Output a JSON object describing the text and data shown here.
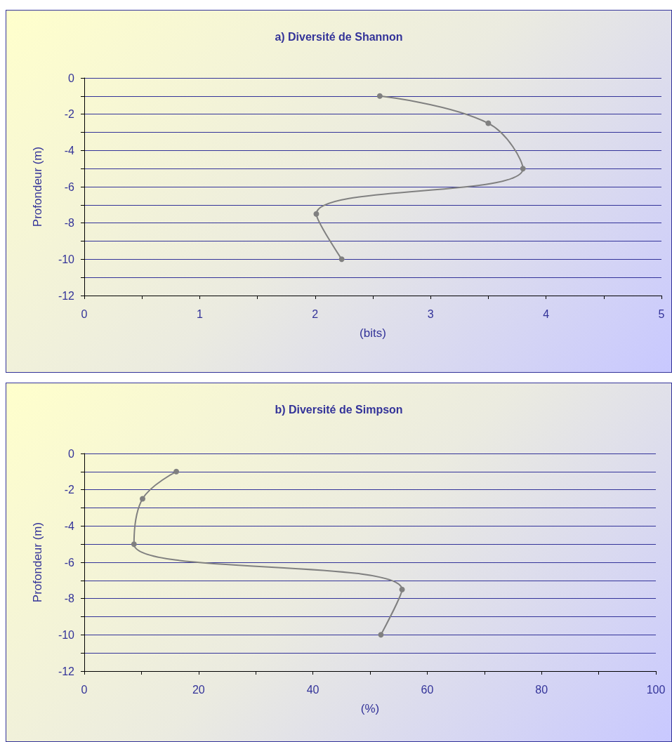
{
  "chart_data": [
    {
      "type": "line",
      "title": "a) Diversité de Shannon",
      "xlabel": "(bits)",
      "ylabel": "Profondeur (m)",
      "x": [
        2.56,
        3.5,
        3.8,
        2.01,
        2.23
      ],
      "values": [
        -1,
        -2.5,
        -5,
        -7.5,
        -10
      ],
      "color": "#808080",
      "xlim": [
        0,
        5
      ],
      "xticks": [
        0,
        {
          "value": 0.5,
          "label": null
        },
        1,
        {
          "value": 1.5,
          "label": null
        },
        2,
        {
          "value": 2.5,
          "label": null
        },
        3,
        {
          "value": 3.5,
          "label": null
        },
        4,
        {
          "value": 4.5,
          "label": null
        },
        5
      ],
      "ylim": [
        -12,
        0
      ],
      "yticks": [
        -12,
        {
          "value": -11,
          "label": null
        },
        -10,
        {
          "value": -9,
          "label": null
        },
        -8,
        {
          "value": -7,
          "label": null
        },
        -6,
        {
          "value": -5,
          "label": null
        },
        -4,
        {
          "value": -3,
          "label": null
        },
        -2,
        {
          "value": -1,
          "label": null
        },
        0
      ],
      "grid": "y",
      "marker": "circle",
      "line_style": "solid"
    },
    {
      "type": "line",
      "title": "b) Diversité de Simpson",
      "xlabel": "(%)",
      "ylabel": "Profondeur (m)",
      "x": [
        16.1,
        10.2,
        8.7,
        55.6,
        51.9
      ],
      "values": [
        -1,
        -2.5,
        -5,
        -7.5,
        -10
      ],
      "color": "#808080",
      "xlim": [
        0,
        100
      ],
      "xticks": [
        0,
        {
          "value": 10,
          "label": null
        },
        20,
        {
          "value": 30,
          "label": null
        },
        40,
        {
          "value": 50,
          "label": null
        },
        60,
        {
          "value": 70,
          "label": null
        },
        80,
        {
          "value": 90,
          "label": null
        },
        100
      ],
      "ylim": [
        -12,
        0
      ],
      "yticks": [
        -12,
        {
          "value": -11,
          "label": null
        },
        -10,
        {
          "value": -9,
          "label": null
        },
        -8,
        {
          "value": -7,
          "label": null
        },
        -6,
        {
          "value": -5,
          "label": null
        },
        -4,
        {
          "value": -3,
          "label": null
        },
        -2,
        {
          "value": -1,
          "label": null
        },
        0
      ],
      "grid": "y",
      "marker": "circle",
      "line_style": "solid"
    }
  ]
}
